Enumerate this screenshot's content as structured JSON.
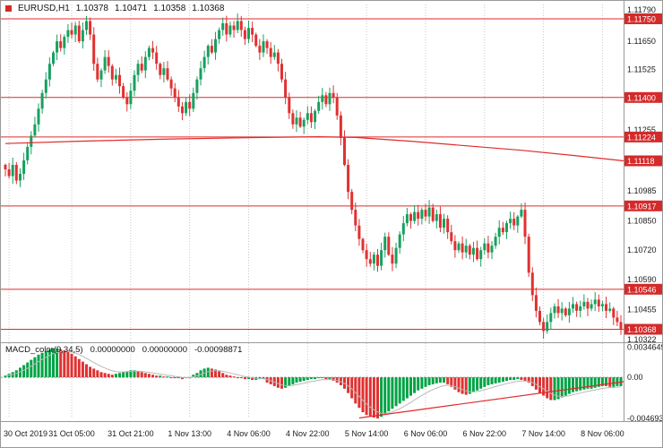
{
  "header": {
    "symbol_period": "EURUSD,H1",
    "open": "1.10378",
    "high": "1.10471",
    "low": "1.10358",
    "close": "1.10368"
  },
  "macd_panel": {
    "label": "MACD_color(9,34,5)",
    "v1": "0.00000000",
    "v2": "0.00000000",
    "v3": "-0.00098871"
  },
  "colors": {
    "bull": "#18A05F",
    "bear": "#E03131",
    "macd_up": "#00A344",
    "macd_down": "#E03131",
    "red_line": "#E02B2B",
    "badge_bg": "#D42A2A",
    "badge_text": "#FFFFFF",
    "grid": "#C8C8C8",
    "axis_text": "#1A1A1A",
    "border": "#9A9A9A",
    "signal": "#B8B8B8"
  },
  "chart_data": {
    "type": "candlestick",
    "symbol": "EURUSD",
    "timeframe": "H1",
    "title": "EURUSD,H1",
    "y_axis": {
      "range": [
        1.10322,
        1.1179
      ],
      "ticks": [
        "1.11790",
        "1.11650",
        "1.11525",
        "1.11255",
        "1.10985",
        "1.10850",
        "1.10720",
        "1.10590",
        "1.10455",
        "1.10322"
      ],
      "badges": [
        "1.11750",
        "1.11400",
        "1.11224",
        "1.11118",
        "1.10917",
        "1.10546",
        "1.10368"
      ]
    },
    "x_axis_labels": [
      {
        "text": "30 Oct 2019",
        "i": 1
      },
      {
        "text": "31 Oct 05:00",
        "i": 18
      },
      {
        "text": "31 Oct 21:00",
        "i": 34
      },
      {
        "text": "1 Nov 13:00",
        "i": 50
      },
      {
        "text": "4 Nov 06:00",
        "i": 66
      },
      {
        "text": "4 Nov 22:00",
        "i": 82
      },
      {
        "text": "5 Nov 14:00",
        "i": 98
      },
      {
        "text": "6 Nov 06:00",
        "i": 114
      },
      {
        "text": "6 Nov 22:00",
        "i": 130
      },
      {
        "text": "7 Nov 14:00",
        "i": 146
      },
      {
        "text": "8 Nov 06:00",
        "i": 162
      }
    ],
    "h_lines": [
      1.1175,
      1.114,
      1.11224,
      1.10917,
      1.10546,
      1.10368
    ],
    "ma_line": [
      [
        0,
        1.11195
      ],
      [
        20,
        1.11205
      ],
      [
        45,
        1.11215
      ],
      [
        70,
        1.11222
      ],
      [
        85,
        1.11225
      ],
      [
        95,
        1.11222
      ],
      [
        110,
        1.11205
      ],
      [
        125,
        1.11185
      ],
      [
        140,
        1.11165
      ],
      [
        155,
        1.1114
      ],
      [
        168,
        1.11118
      ]
    ],
    "first_open": 1.111,
    "closes": [
      1.1108,
      1.1105,
      1.111,
      1.1103,
      1.1106,
      1.1112,
      1.1118,
      1.1123,
      1.1128,
      1.1135,
      1.1142,
      1.1148,
      1.1155,
      1.116,
      1.1165,
      1.1162,
      1.1167,
      1.117,
      1.1168,
      1.1172,
      1.1165,
      1.117,
      1.1174,
      1.1168,
      1.1155,
      1.1148,
      1.1152,
      1.1158,
      1.1154,
      1.1148,
      1.115,
      1.1145,
      1.114,
      1.1137,
      1.1143,
      1.115,
      1.1155,
      1.1152,
      1.1158,
      1.1162,
      1.116,
      1.1155,
      1.115,
      1.1153,
      1.1148,
      1.1144,
      1.114,
      1.1136,
      1.1133,
      1.1138,
      1.1135,
      1.1142,
      1.1148,
      1.1153,
      1.1158,
      1.1163,
      1.116,
      1.1166,
      1.117,
      1.1173,
      1.1168,
      1.1172,
      1.117,
      1.1174,
      1.117,
      1.1166,
      1.1171,
      1.1168,
      1.1163,
      1.116,
      1.1165,
      1.1162,
      1.1158,
      1.116,
      1.1155,
      1.1148,
      1.114,
      1.1133,
      1.1128,
      1.1131,
      1.1127,
      1.113,
      1.1133,
      1.1129,
      1.1134,
      1.1138,
      1.1141,
      1.1137,
      1.1142,
      1.114,
      1.1132,
      1.1122,
      1.111,
      1.1098,
      1.109,
      1.1083,
      1.1077,
      1.1072,
      1.1068,
      1.1066,
      1.107,
      1.1065,
      1.1072,
      1.1078,
      1.107,
      1.1066,
      1.1073,
      1.1079,
      1.1084,
      1.1088,
      1.1085,
      1.1089,
      1.1086,
      1.109,
      1.1087,
      1.1091,
      1.1085,
      1.1088,
      1.1082,
      1.1086,
      1.108,
      1.1076,
      1.1072,
      1.1075,
      1.1071,
      1.1074,
      1.107,
      1.1073,
      1.1068,
      1.1072,
      1.1075,
      1.1071,
      1.1074,
      1.1078,
      1.1082,
      1.108,
      1.1084,
      1.1086,
      1.1083,
      1.1087,
      1.109,
      1.1078,
      1.1062,
      1.1052,
      1.1045,
      1.104,
      1.1036,
      1.104,
      1.1044,
      1.1047,
      1.1044,
      1.1046,
      1.1043,
      1.1046,
      1.1048,
      1.1045,
      1.1047,
      1.1049,
      1.1046,
      1.1048,
      1.105,
      1.1047,
      1.1048,
      1.1045,
      1.1046,
      1.1042,
      1.104,
      1.1037
    ],
    "macd": {
      "range": [
        -0.0047,
        0.0035
      ],
      "ticks": [
        {
          "text": "0.0034649",
          "v": 0.0034649
        },
        {
          "text": "0.00",
          "v": 0
        },
        {
          "text": "-0.0046934",
          "v": -0.0046934
        }
      ],
      "trendline": [
        [
          96,
          -0.00465
        ],
        [
          168,
          -0.0005
        ]
      ],
      "hist": [
        0.0002,
        0.0004,
        0.0006,
        0.0008,
        0.0011,
        0.0014,
        0.0017,
        0.002,
        0.0023,
        0.0026,
        0.0028,
        0.003,
        0.0032,
        0.0033,
        0.0033,
        0.0032,
        0.0031,
        0.0029,
        0.0027,
        0.0024,
        0.0021,
        0.0018,
        0.0015,
        0.0012,
        0.001,
        0.0008,
        0.0006,
        0.0005,
        0.0004,
        0.0003,
        0.0004,
        0.0005,
        0.0006,
        0.0007,
        0.0008,
        0.0008,
        0.0007,
        0.0006,
        0.0005,
        0.0004,
        0.0003,
        0.0002,
        0.0002,
        0.0001,
        0.0001,
        0.0,
        -0.0001,
        -0.0001,
        -0.0002,
        -0.0001,
        0.0,
        0.0003,
        0.0005,
        0.0008,
        0.001,
        0.0011,
        0.001,
        0.0009,
        0.0007,
        0.0005,
        0.0003,
        0.0002,
        0.0001,
        0.0,
        -0.0001,
        -0.0002,
        -0.0002,
        -0.0003,
        -0.0003,
        -0.0002,
        -0.0002,
        -0.0006,
        -0.0008,
        -0.001,
        -0.0012,
        -0.0013,
        -0.0012,
        -0.001,
        -0.0008,
        -0.0006,
        -0.0005,
        -0.0004,
        -0.0003,
        -0.0002,
        -0.0002,
        -0.0001,
        -0.0001,
        -0.0002,
        -0.0002,
        -0.0004,
        -0.0006,
        -0.0009,
        -0.0013,
        -0.0018,
        -0.0024,
        -0.003,
        -0.0035,
        -0.004,
        -0.0043,
        -0.0045,
        -0.0046,
        -0.0047,
        -0.0045,
        -0.0042,
        -0.0039,
        -0.0036,
        -0.0033,
        -0.003,
        -0.0027,
        -0.0024,
        -0.0021,
        -0.0018,
        -0.0015,
        -0.0013,
        -0.0011,
        -0.0009,
        -0.0008,
        -0.0007,
        -0.0006,
        -0.0006,
        -0.0008,
        -0.0011,
        -0.0014,
        -0.0017,
        -0.0019,
        -0.002,
        -0.0019,
        -0.0017,
        -0.0015,
        -0.0013,
        -0.0011,
        -0.0009,
        -0.0008,
        -0.0007,
        -0.0006,
        -0.0005,
        -0.0004,
        -0.0003,
        -0.0003,
        -0.0002,
        -0.0003,
        -0.0004,
        -0.0006,
        -0.001,
        -0.0014,
        -0.0018,
        -0.0021,
        -0.0024,
        -0.0026,
        -0.0026,
        -0.0025,
        -0.0023,
        -0.0021,
        -0.0019,
        -0.0017,
        -0.0016,
        -0.0015,
        -0.0014,
        -0.0013,
        -0.0013,
        -0.0012,
        -0.0011,
        -0.001,
        -0.001,
        -0.0011,
        -0.0011,
        -0.001,
        -0.001
      ]
    }
  }
}
